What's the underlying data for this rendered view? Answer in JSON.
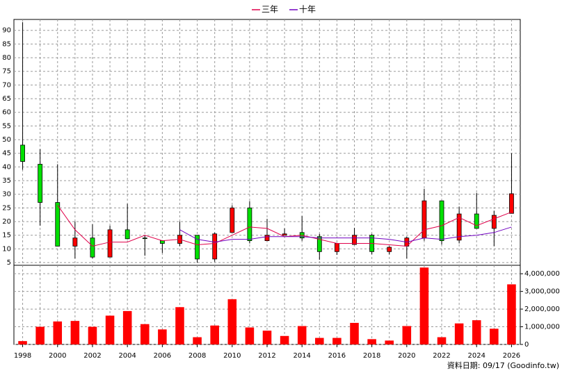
{
  "chart_data": {
    "type": "candlestick",
    "x": [
      1998,
      1999,
      2000,
      2001,
      2002,
      2003,
      2004,
      2005,
      2006,
      2007,
      2008,
      2009,
      2010,
      2011,
      2012,
      2013,
      2014,
      2015,
      2016,
      2017,
      2018,
      2019,
      2020,
      2021,
      2022,
      2023,
      2024,
      2025,
      2026
    ],
    "open": [
      48,
      41,
      27,
      11,
      14,
      7,
      17,
      14,
      13,
      12,
      15,
      6.3,
      16,
      25,
      13,
      15,
      16,
      14.5,
      9,
      11.6,
      15,
      9,
      11,
      14,
      27.6,
      13.2,
      22.8,
      17.5,
      23
    ],
    "high": [
      93,
      46.5,
      41,
      20,
      19,
      18.5,
      26.5,
      15,
      13.2,
      20,
      15,
      16,
      26,
      27.5,
      21,
      17.5,
      22,
      15.5,
      12.2,
      17.7,
      15.5,
      11,
      14.5,
      32,
      27.6,
      25.5,
      30.5,
      24,
      45
    ],
    "low": [
      39,
      18.5,
      11,
      6.5,
      6.5,
      7,
      13.5,
      7.5,
      8.5,
      11,
      5,
      5.3,
      16,
      12,
      13,
      15,
      13,
      6,
      7.8,
      11.6,
      8,
      8,
      6.5,
      13,
      11.6,
      12,
      17.5,
      11,
      23
    ],
    "close": [
      42,
      27,
      11,
      14,
      7,
      17,
      13.7,
      13.8,
      12,
      15,
      6.3,
      15.5,
      25,
      13,
      15,
      15.5,
      14,
      9,
      12,
      15,
      9,
      10.6,
      14,
      27.6,
      13,
      22.8,
      17.5,
      22.3,
      30.2
    ],
    "up_color": "#ff0000",
    "down_color": "#00e000",
    "series": [
      {
        "name": "三年",
        "color": "#e0004a",
        "values": [
          null,
          null,
          26,
          17,
          11,
          12.5,
          12.5,
          15,
          13,
          13.5,
          11.5,
          12,
          15,
          18,
          17.5,
          14.5,
          15,
          13.5,
          12,
          12,
          12,
          11.5,
          11,
          17,
          18.5,
          21.5,
          18.5,
          21,
          23.5
        ]
      },
      {
        "name": "十年",
        "color": "#7000c0",
        "values": [
          null,
          null,
          null,
          null,
          null,
          null,
          null,
          null,
          null,
          17,
          13.5,
          12.5,
          13.5,
          13.5,
          14.5,
          14.5,
          14.5,
          14,
          14,
          14,
          14,
          13.5,
          12.5,
          14,
          13.5,
          14.5,
          15,
          16,
          18
        ]
      }
    ],
    "xlim": [
      1997.5,
      2026.5
    ],
    "xticks": [
      1998,
      2000,
      2002,
      2004,
      2006,
      2008,
      2010,
      2012,
      2014,
      2016,
      2018,
      2020,
      2022,
      2024,
      2026
    ],
    "ylim": [
      4,
      94
    ],
    "yticks": [
      5,
      10,
      15,
      20,
      25,
      30,
      35,
      40,
      45,
      50,
      55,
      60,
      65,
      70,
      75,
      80,
      85,
      90
    ],
    "volume": {
      "color": "#ff0000",
      "values": [
        190000,
        1000000,
        1300000,
        1330000,
        1000000,
        1630000,
        1890000,
        1150000,
        850000,
        2110000,
        410000,
        1070000,
        2560000,
        960000,
        780000,
        480000,
        1040000,
        370000,
        370000,
        1220000,
        300000,
        220000,
        1040000,
        4350000,
        410000,
        1190000,
        1370000,
        890000,
        3400000
      ],
      "ylim": [
        0,
        4400000
      ],
      "yticks": [
        {
          "value": 0,
          "label": "0"
        },
        {
          "value": 1000000,
          "label": "1,000,000"
        },
        {
          "value": 2000000,
          "label": "2,000,000"
        },
        {
          "value": 3000000,
          "label": "3,000,000"
        },
        {
          "value": 4000000,
          "label": "4,000,000"
        }
      ]
    },
    "grid": true,
    "legend": "top",
    "footer": "資料日期: 09/17  (Goodinfo.tw)"
  }
}
